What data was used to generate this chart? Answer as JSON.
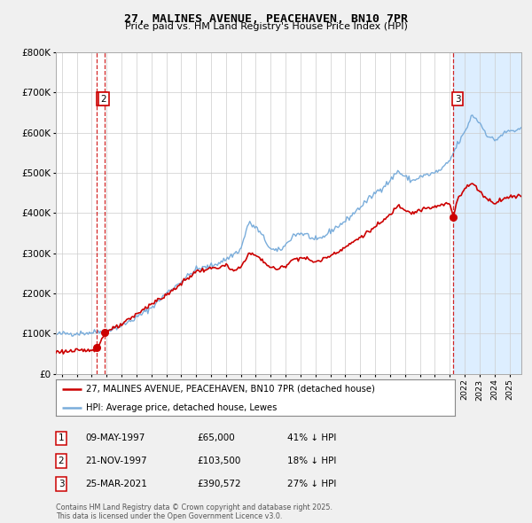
{
  "title": "27, MALINES AVENUE, PEACEHAVEN, BN10 7PR",
  "subtitle": "Price paid vs. HM Land Registry's House Price Index (HPI)",
  "legend_line1": "27, MALINES AVENUE, PEACEHAVEN, BN10 7PR (detached house)",
  "legend_line2": "HPI: Average price, detached house, Lewes",
  "sale_color": "#cc0000",
  "hpi_color": "#7aaddb",
  "shade_color": "#ddeeff",
  "background_color": "#f0f0f0",
  "plot_bg_color": "#ffffff",
  "ylim": [
    0,
    800000
  ],
  "yticks": [
    0,
    100000,
    200000,
    300000,
    400000,
    500000,
    600000,
    700000,
    800000
  ],
  "ytick_labels": [
    "£0",
    "£100K",
    "£200K",
    "£300K",
    "£400K",
    "£500K",
    "£600K",
    "£700K",
    "£800K"
  ],
  "xmin": 1994.6,
  "xmax": 2025.8,
  "xticks": [
    1995,
    1996,
    1997,
    1998,
    1999,
    2000,
    2001,
    2002,
    2003,
    2004,
    2005,
    2006,
    2007,
    2008,
    2009,
    2010,
    2011,
    2012,
    2013,
    2014,
    2015,
    2016,
    2017,
    2018,
    2019,
    2020,
    2021,
    2022,
    2023,
    2024,
    2025
  ],
  "sale_events": [
    {
      "date_num": 1997.36,
      "price": 65000,
      "label": "1",
      "date_str": "09-MAY-1997",
      "price_str": "£65,000",
      "hpi_str": "41% ↓ HPI"
    },
    {
      "date_num": 1997.89,
      "price": 103500,
      "label": "2",
      "date_str": "21-NOV-1997",
      "price_str": "£103,500",
      "hpi_str": "18% ↓ HPI"
    },
    {
      "date_num": 2021.23,
      "price": 390572,
      "label": "3",
      "date_str": "25-MAR-2021",
      "price_str": "£390,572",
      "hpi_str": "27% ↓ HPI"
    }
  ],
  "footer": "Contains HM Land Registry data © Crown copyright and database right 2025.\nThis data is licensed under the Open Government Licence v3.0."
}
